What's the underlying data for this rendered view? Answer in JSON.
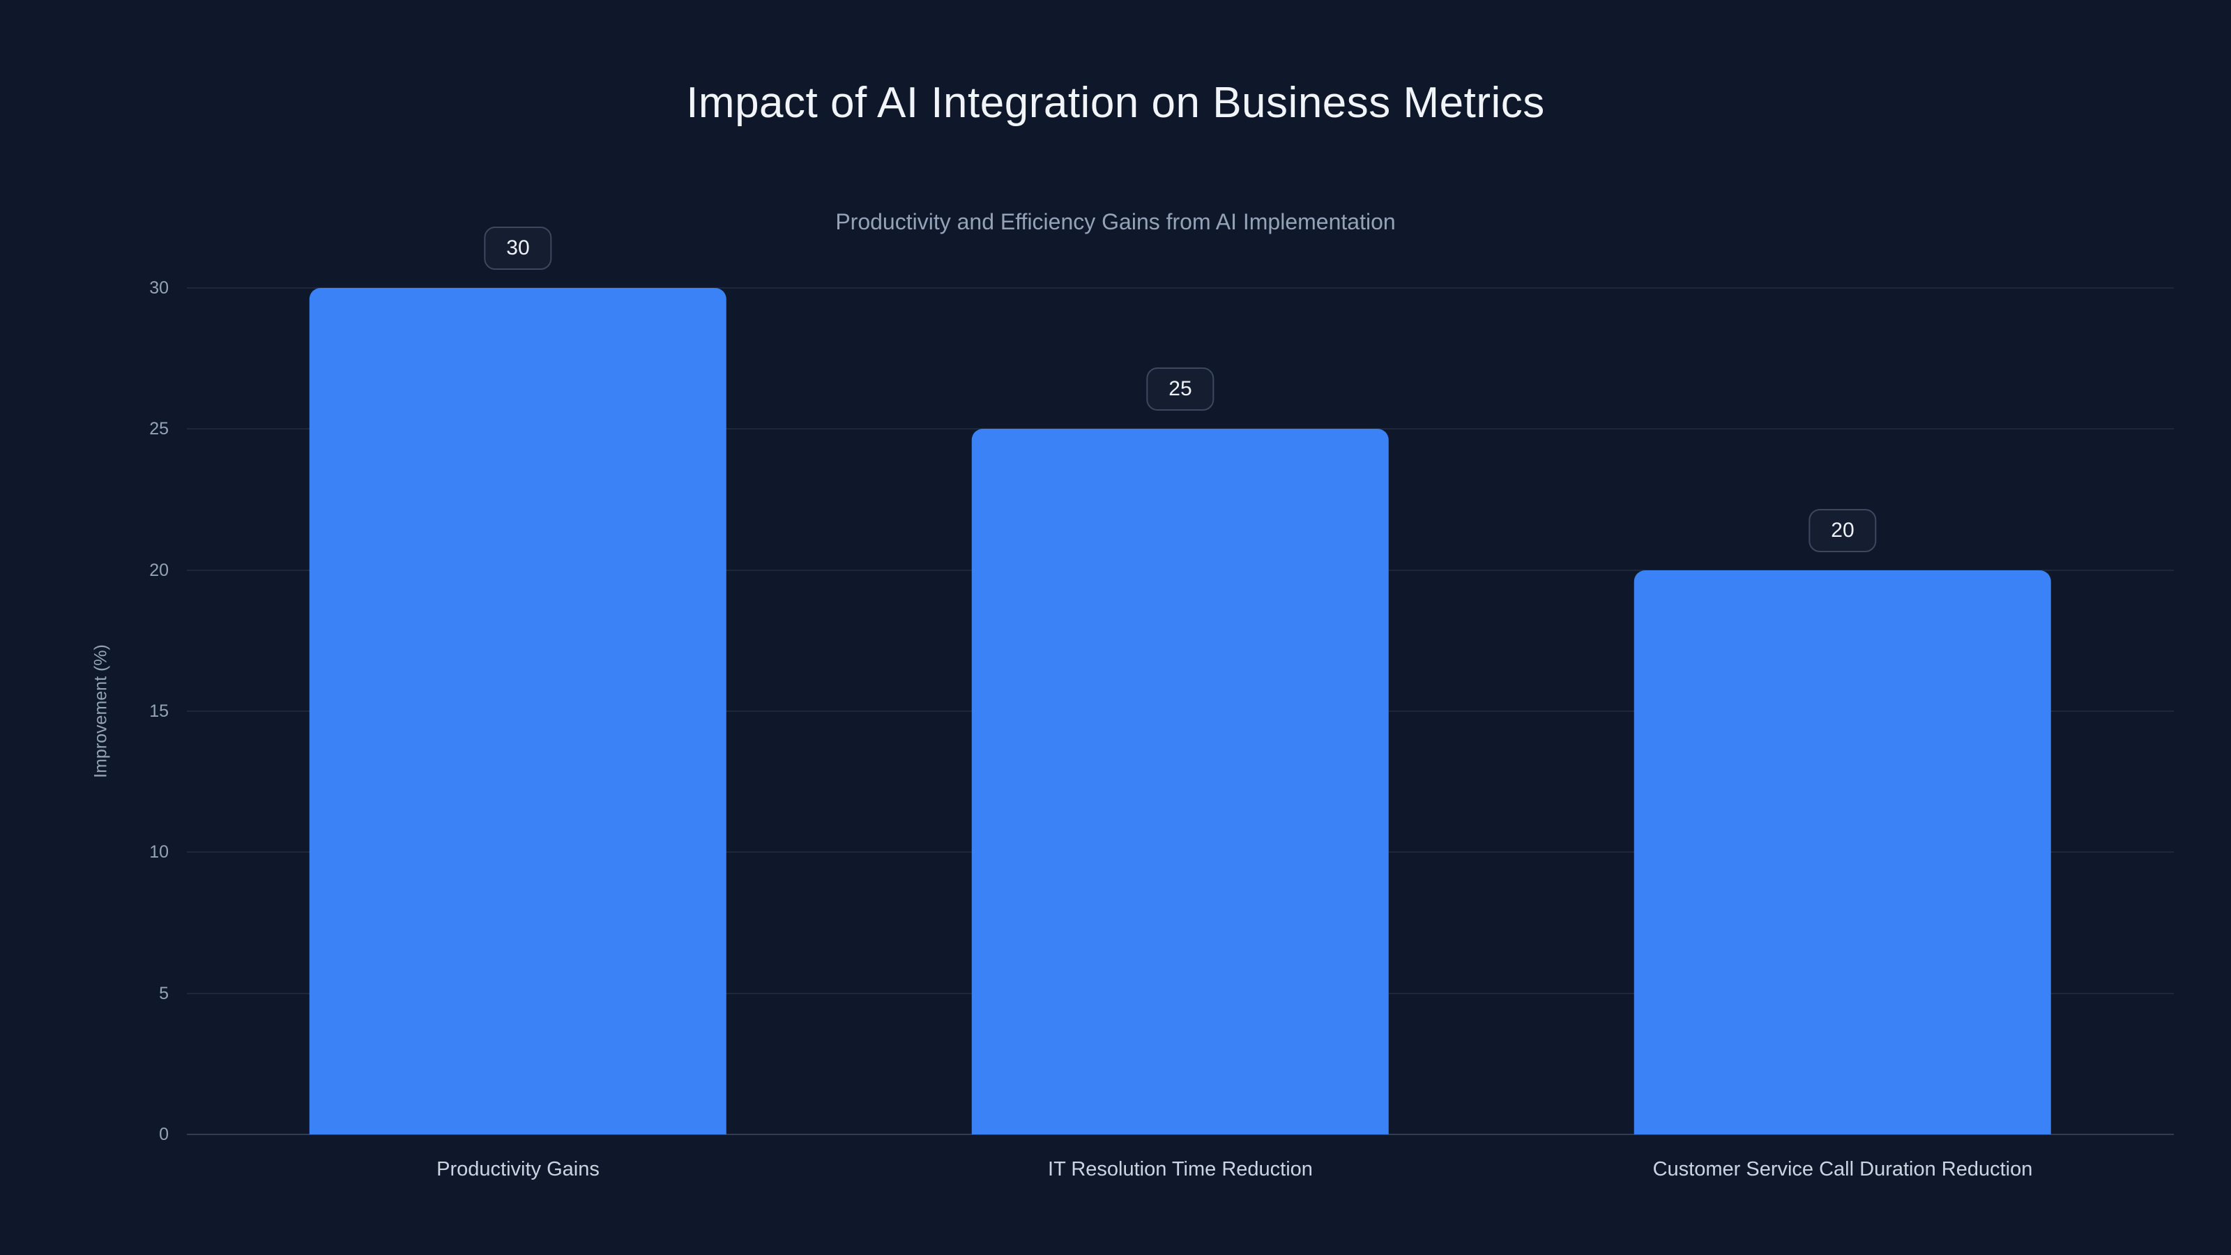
{
  "header": {
    "title": "Impact of AI Integration on Business Metrics",
    "subtitle": "Productivity and Efficiency Gains from AI Implementation"
  },
  "chart_data": {
    "type": "bar",
    "title": "Impact of AI Integration on Business Metrics",
    "subtitle": "Productivity and Efficiency Gains from AI Implementation",
    "categories": [
      "Productivity Gains",
      "IT Resolution Time Reduction",
      "Customer Service Call Duration Reduction"
    ],
    "values": [
      30,
      25,
      20
    ],
    "value_labels": [
      "30",
      "25",
      "20"
    ],
    "xlabel": "",
    "ylabel": "Improvement (%)",
    "ylim": [
      0,
      30
    ],
    "yticks": [
      0,
      5,
      10,
      15,
      20,
      25,
      30
    ],
    "grid": true,
    "legend": "none",
    "colors": {
      "background": "#0f172a",
      "bar": "#3b82f6",
      "title_text": "#f1f5f9",
      "subtitle_text": "#94a3b8",
      "tick_text": "#94a3b8",
      "category_text": "#cbd5e1",
      "gridline": "rgba(148,163,184,0.12)",
      "badge_background": "#151e30",
      "badge_border": "#3b4860"
    }
  }
}
